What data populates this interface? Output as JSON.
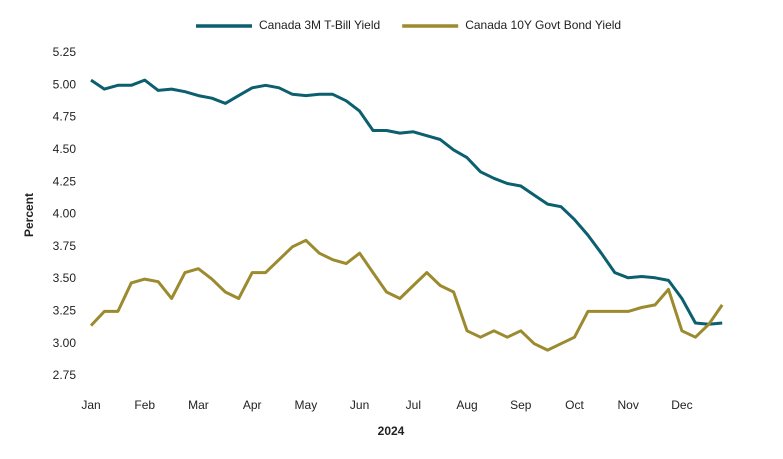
{
  "chart_data": {
    "type": "line",
    "x_label": "2024",
    "y_label": "Percent",
    "legend": "top",
    "categories": [
      "Jan",
      null,
      null,
      null,
      "Feb",
      null,
      null,
      null,
      "Mar",
      null,
      null,
      null,
      "Apr",
      null,
      null,
      null,
      "May",
      null,
      null,
      null,
      "Jun",
      null,
      null,
      null,
      "Jul",
      null,
      null,
      null,
      "Aug",
      null,
      null,
      null,
      "Sep",
      null,
      null,
      null,
      "Oct",
      null,
      null,
      null,
      "Nov",
      null,
      null,
      null,
      "Dec",
      null,
      null,
      null
    ],
    "series": [
      {
        "name": "Canada 3M T-Bill Yield",
        "color": "#0b5f6e",
        "values": [
          5.04,
          4.97,
          5.0,
          5.0,
          5.04,
          4.96,
          4.97,
          4.95,
          4.92,
          4.9,
          4.86,
          4.92,
          4.98,
          5.0,
          4.98,
          4.93,
          4.92,
          4.93,
          4.93,
          4.88,
          4.8,
          4.65,
          4.65,
          4.63,
          4.64,
          4.61,
          4.58,
          4.5,
          4.44,
          4.33,
          4.28,
          4.24,
          4.22,
          4.15,
          4.08,
          4.06,
          3.96,
          3.84,
          3.7,
          3.55,
          3.51,
          3.52,
          3.51,
          3.49,
          3.35,
          3.16,
          3.15,
          3.16
        ]
      },
      {
        "name": "Canada 10Y Govt Bond Yield",
        "color": "#9b8a2e",
        "values": [
          3.14,
          3.25,
          3.25,
          3.47,
          3.5,
          3.48,
          3.35,
          3.55,
          3.58,
          3.5,
          3.4,
          3.35,
          3.55,
          3.55,
          3.65,
          3.75,
          3.8,
          3.7,
          3.65,
          3.62,
          3.7,
          3.55,
          3.4,
          3.35,
          3.45,
          3.55,
          3.45,
          3.4,
          3.1,
          3.05,
          3.1,
          3.05,
          3.1,
          3.0,
          2.95,
          3.0,
          3.05,
          3.25,
          3.25,
          3.25,
          3.25,
          3.28,
          3.3,
          3.42,
          3.1,
          3.05,
          3.15,
          3.3
        ]
      }
    ],
    "ylim": [
      2.65,
      5.3
    ],
    "yticks": [
      {
        "value": 2.75,
        "label": "2.75"
      },
      {
        "value": 3,
        "label": "3.00"
      },
      {
        "value": 3.25,
        "label": "3.25"
      },
      {
        "value": 3.5,
        "label": "3.50"
      },
      {
        "value": 3.75,
        "label": "3.75"
      },
      {
        "value": 4,
        "label": "4.00"
      },
      {
        "value": 4.25,
        "label": "4.25"
      },
      {
        "value": 4.5,
        "label": "4.50"
      },
      {
        "value": 4.75,
        "label": "4.75"
      },
      {
        "value": 5,
        "label": "5.00"
      },
      {
        "value": 5.25,
        "label": "5.25"
      }
    ],
    "grid": false
  }
}
